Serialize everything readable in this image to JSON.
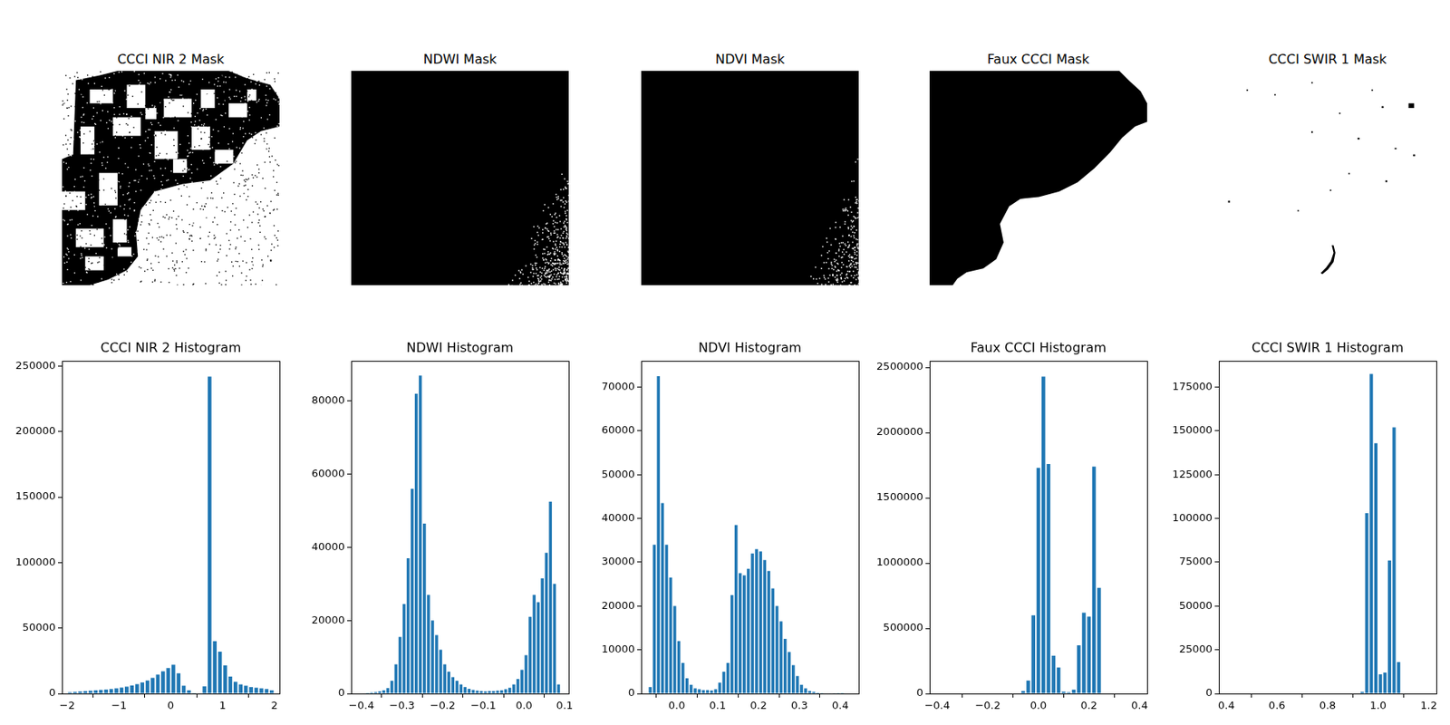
{
  "masks": [
    {
      "title": "CCCI NIR 2 Mask"
    },
    {
      "title": "NDWI Mask"
    },
    {
      "title": "NDVI Mask"
    },
    {
      "title": "Faux CCCI Mask"
    },
    {
      "title": "CCCI SWIR 1 Mask"
    }
  ],
  "chart_data": [
    {
      "type": "histogram",
      "title": "CCCI NIR 2 Histogram",
      "color": "#1f77b4",
      "grid": false,
      "bins": [
        -2,
        -1.9,
        -1.8,
        -1.7,
        -1.6,
        -1.5,
        -1.4,
        -1.3,
        -1.2,
        -1.1,
        -1,
        -0.9,
        -0.8,
        -0.7,
        -0.6,
        -0.5,
        -0.4,
        -0.3,
        -0.2,
        -0.1,
        0,
        0.1,
        0.2,
        0.3,
        0.4,
        0.5,
        0.6,
        0.7,
        0.8,
        0.9,
        1,
        1.1,
        1.2,
        1.3,
        1.4,
        1.5,
        1.6,
        1.7,
        1.8,
        1.9,
        2
      ],
      "counts": [
        1000,
        1300,
        1600,
        1900,
        2200,
        2500,
        2800,
        3100,
        3500,
        4000,
        4600,
        5300,
        6200,
        7200,
        8500,
        10000,
        12000,
        14500,
        17000,
        19500,
        22000,
        15500,
        6000,
        2500,
        500,
        0,
        5500,
        242000,
        40000,
        32000,
        21500,
        13000,
        9000,
        7000,
        6000,
        5000,
        4500,
        4000,
        3500,
        2500
      ],
      "xlim": [
        -2.1,
        2.1
      ],
      "xticks": [
        {
          "value": -2,
          "label": "−2"
        },
        {
          "value": -1,
          "label": "−1"
        },
        0,
        1,
        2
      ],
      "ylim": [
        0,
        254000
      ],
      "yticks": [
        0,
        50000,
        100000,
        150000,
        200000,
        250000
      ]
    },
    {
      "type": "histogram",
      "title": "NDWI Histogram",
      "color": "#1f77b4",
      "grid": false,
      "bins": [
        -0.4,
        -0.39,
        -0.38,
        -0.37,
        -0.36,
        -0.35,
        -0.34,
        -0.33,
        -0.32,
        -0.31,
        -0.3,
        -0.29,
        -0.28,
        -0.27,
        -0.26,
        -0.25,
        -0.24,
        -0.23,
        -0.22,
        -0.21,
        -0.2,
        -0.19,
        -0.18,
        -0.17,
        -0.16,
        -0.15,
        -0.14,
        -0.13,
        -0.12,
        -0.11,
        -0.1,
        -0.09,
        -0.08,
        -0.07,
        -0.06,
        -0.05,
        -0.04,
        -0.03,
        -0.02,
        -0.01,
        0,
        0.01,
        0.02,
        0.03,
        0.04,
        0.05,
        0.06,
        0.07,
        0.08,
        0.09
      ],
      "counts": [
        100,
        200,
        300,
        400,
        600,
        900,
        1500,
        3500,
        8000,
        15500,
        24500,
        37000,
        56000,
        82000,
        87000,
        46500,
        27000,
        20000,
        16000,
        12000,
        8000,
        6000,
        4500,
        3500,
        2500,
        1800,
        1300,
        1000,
        800,
        700,
        600,
        700,
        700,
        800,
        900,
        1200,
        1600,
        2500,
        4000,
        6500,
        10500,
        21000,
        27000,
        25000,
        31500,
        38500,
        52500,
        30000,
        2500
      ],
      "xlim": [
        -0.425,
        0.11
      ],
      "xticks": [
        {
          "value": -0.4,
          "label": "−0.4"
        },
        {
          "value": -0.3,
          "label": "−0.3"
        },
        {
          "value": -0.2,
          "label": "−0.2"
        },
        {
          "value": -0.1,
          "label": "−0.1"
        },
        {
          "value": 0,
          "label": "0.0"
        },
        0.1
      ],
      "ylim": [
        0,
        91000
      ],
      "yticks": [
        0,
        20000,
        40000,
        60000,
        80000
      ]
    },
    {
      "type": "histogram",
      "title": "NDVI Histogram",
      "color": "#1f77b4",
      "grid": false,
      "bins": [
        -0.07,
        -0.06,
        -0.05,
        -0.04,
        -0.03,
        -0.02,
        -0.01,
        0,
        0.01,
        0.02,
        0.03,
        0.04,
        0.05,
        0.06,
        0.07,
        0.08,
        0.09,
        0.1,
        0.11,
        0.12,
        0.13,
        0.14,
        0.15,
        0.16,
        0.17,
        0.18,
        0.19,
        0.2,
        0.21,
        0.22,
        0.23,
        0.24,
        0.25,
        0.26,
        0.27,
        0.28,
        0.29,
        0.3,
        0.31,
        0.32,
        0.33,
        0.34,
        0.35,
        0.36,
        0.37,
        0.38,
        0.39,
        0.4,
        0.41
      ],
      "counts": [
        1500,
        34000,
        72500,
        43500,
        34000,
        26500,
        20000,
        12000,
        7000,
        3500,
        2000,
        1200,
        1000,
        800,
        800,
        700,
        1000,
        2500,
        5000,
        7000,
        22500,
        38500,
        27500,
        27000,
        28500,
        32000,
        33000,
        32500,
        30500,
        28000,
        24000,
        20000,
        16500,
        12500,
        9500,
        6500,
        4000,
        2000,
        1200,
        600,
        400,
        200,
        150,
        100,
        80,
        50,
        30,
        20
      ],
      "xlim": [
        -0.087,
        0.445
      ],
      "xticks": [
        {
          "value": 0,
          "label": "0.0"
        },
        0.1,
        0.2,
        0.3,
        0.4
      ],
      "ylim": [
        0,
        76000
      ],
      "yticks": [
        0,
        10000,
        20000,
        30000,
        40000,
        50000,
        60000,
        70000
      ]
    },
    {
      "type": "histogram",
      "title": "Faux CCCI Histogram",
      "color": "#1f77b4",
      "grid": false,
      "bins": [
        -0.07,
        -0.05,
        -0.03,
        -0.01,
        0.01,
        0.03,
        0.05,
        0.07,
        0.09,
        0.11,
        0.13,
        0.15,
        0.17,
        0.19,
        0.21,
        0.23,
        0.25
      ],
      "counts": [
        20000,
        100000,
        600000,
        1730000,
        2430000,
        1760000,
        290000,
        200000,
        15000,
        10000,
        30000,
        370000,
        620000,
        590000,
        1740000,
        810000
      ],
      "xlim": [
        -0.43,
        0.43
      ],
      "xticks": [
        {
          "value": -0.4,
          "label": "−0.4"
        },
        {
          "value": -0.2,
          "label": "−0.2"
        },
        {
          "value": 0,
          "label": "0.0"
        },
        0.2,
        0.4
      ],
      "ylim": [
        0,
        2550000
      ],
      "yticks": [
        0,
        500000,
        1000000,
        1500000,
        2000000,
        2500000
      ]
    },
    {
      "type": "histogram",
      "title": "CCCI SWIR 1 Histogram",
      "color": "#1f77b4",
      "grid": false,
      "bins": [
        0.928,
        0.946,
        0.964,
        0.982,
        1.0,
        1.018,
        1.036,
        1.054,
        1.072,
        1.09
      ],
      "counts": [
        1000,
        103000,
        182500,
        143000,
        11000,
        12000,
        76000,
        152000,
        18000
      ],
      "xlim": [
        0.37,
        1.23
      ],
      "xticks": [
        0.4,
        0.6,
        0.8,
        {
          "value": 1,
          "label": "1.0"
        },
        1.2
      ],
      "ylim": [
        0,
        190000
      ],
      "yticks": [
        0,
        25000,
        50000,
        75000,
        100000,
        125000,
        150000,
        175000
      ]
    }
  ]
}
